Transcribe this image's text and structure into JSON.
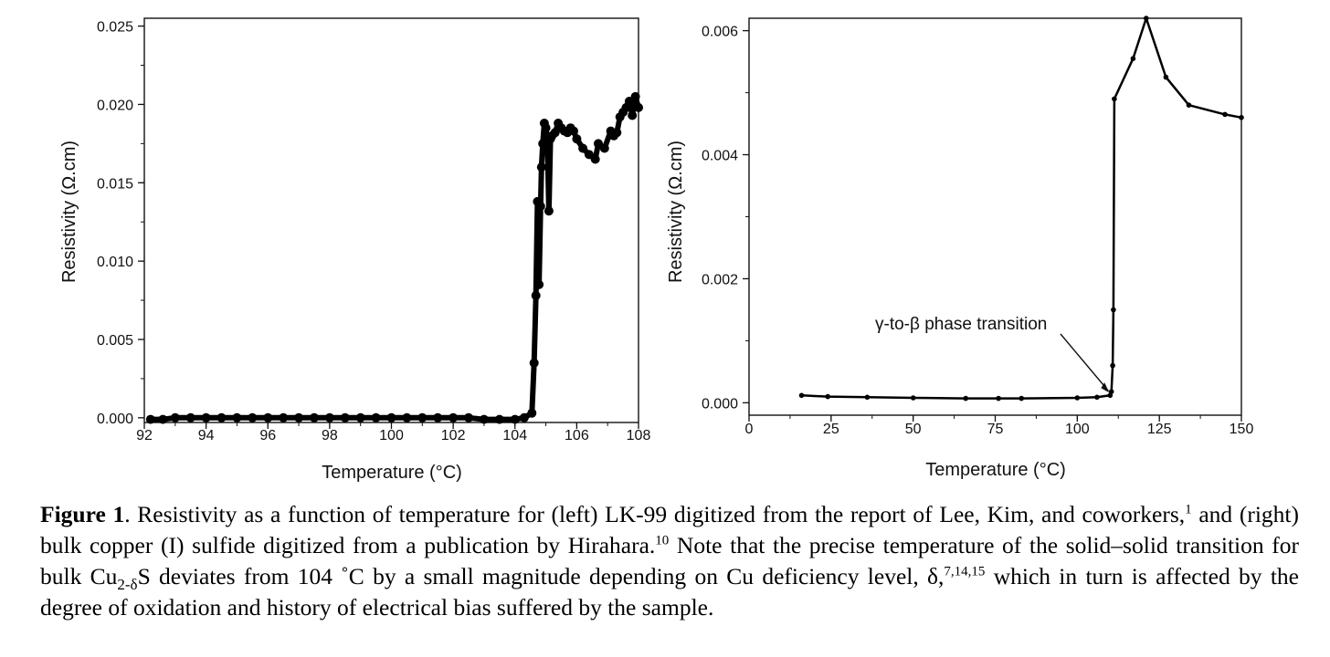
{
  "chart_data": [
    {
      "type": "line",
      "xlabel": "Temperature (°C)",
      "ylabel": "Resistivity (Ω.cm)",
      "xlim": [
        92,
        108
      ],
      "ylim": [
        -0.0003,
        0.0255
      ],
      "xticks": [
        "92",
        "94",
        "96",
        "98",
        "100",
        "102",
        "104",
        "106",
        "108"
      ],
      "yticks": [
        "0.000",
        "0.005",
        "0.010",
        "0.015",
        "0.020",
        "0.025"
      ],
      "series": [
        {
          "marker": "dense-dots",
          "x": [
            92.2,
            92.6,
            93.0,
            93.5,
            94.0,
            94.5,
            95.0,
            95.5,
            96.0,
            96.5,
            97.0,
            97.5,
            98.0,
            98.5,
            99.0,
            99.5,
            100.0,
            100.5,
            101.0,
            101.5,
            102.0,
            102.5,
            103.0,
            103.5,
            104.0,
            104.3,
            104.55,
            104.62,
            104.68,
            104.73,
            104.78,
            104.83,
            104.86,
            104.9,
            104.95,
            105.0,
            105.05,
            105.1,
            105.15,
            105.2,
            105.3,
            105.4,
            105.5,
            105.6,
            105.7,
            105.8,
            105.9,
            106.0,
            106.2,
            106.4,
            106.6,
            106.7,
            106.9,
            107.1,
            107.2,
            107.3,
            107.4,
            107.5,
            107.6,
            107.7,
            107.8,
            107.9,
            108.0
          ],
          "y": [
            -0.0001,
            -0.0001,
            0.0,
            0.0,
            0.0,
            0.0,
            0.0,
            0.0,
            0.0,
            0.0,
            0.0,
            0.0,
            0.0,
            0.0,
            0.0,
            0.0,
            0.0,
            0.0,
            0.0,
            0.0,
            0.0,
            0.0,
            -0.0001,
            -0.0001,
            -0.0001,
            0.0,
            0.0003,
            0.0035,
            0.0078,
            0.0138,
            0.0085,
            0.0135,
            0.016,
            0.0175,
            0.0188,
            0.0185,
            0.0175,
            0.0132,
            0.0178,
            0.018,
            0.0182,
            0.0188,
            0.0185,
            0.0183,
            0.0182,
            0.0185,
            0.0183,
            0.0178,
            0.0172,
            0.0168,
            0.0165,
            0.0175,
            0.0172,
            0.0183,
            0.018,
            0.0182,
            0.0192,
            0.0195,
            0.0198,
            0.0202,
            0.0193,
            0.0205,
            0.0198
          ]
        }
      ]
    },
    {
      "type": "line",
      "xlabel": "Temperature (°C)",
      "ylabel": "Resistivity (Ω.cm)",
      "xlim": [
        0,
        150
      ],
      "ylim": [
        -0.0002,
        0.0062
      ],
      "xticks": [
        "0",
        "25",
        "50",
        "75",
        "100",
        "125",
        "150"
      ],
      "yticks": [
        "0.000",
        "0.002",
        "0.004",
        "0.006"
      ],
      "annotations": [
        {
          "text": "γ-to-β phase transition",
          "x": 110,
          "y": 0.00012
        }
      ],
      "series": [
        {
          "marker": "dots",
          "x": [
            16,
            24,
            36,
            50,
            66,
            76,
            83,
            100,
            106,
            110,
            110.4,
            110.8,
            111,
            111.3,
            117,
            121,
            127,
            134,
            145,
            150
          ],
          "y": [
            0.00012,
            0.0001,
            9e-05,
            8e-05,
            7e-05,
            7e-05,
            7e-05,
            8e-05,
            9e-05,
            0.00012,
            0.00018,
            0.0006,
            0.0015,
            0.0049,
            0.00555,
            0.0062,
            0.00525,
            0.0048,
            0.00465,
            0.0046
          ]
        }
      ]
    }
  ],
  "caption": {
    "label": "Figure 1",
    "part1": ". Resistivity as a function of temperature for (left) LK-99 digitized from the report of Lee, Kim, and coworkers,",
    "ref1": "1",
    "part2": " and (right) bulk copper (I) sulfide digitized from a publication by Hirahara.",
    "ref2": "10",
    "part3": " Note that the precise temperature of the solid–solid transition for bulk Cu",
    "sub1": "2-δ",
    "part4": "S deviates from 104 ˚C by a small magnitude depending on Cu deficiency level, δ,",
    "ref3": "7,14,15",
    "part5": " which in turn is affected by the degree of oxidation and history of electrical bias suffered by the sample."
  }
}
